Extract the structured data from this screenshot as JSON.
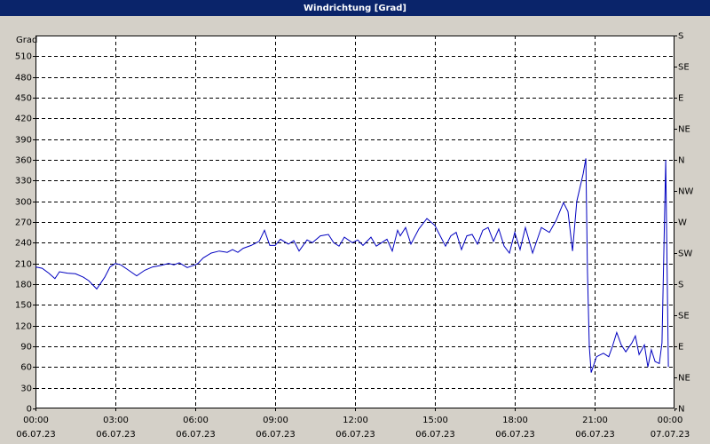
{
  "chart_data": {
    "type": "line",
    "title": "Windrichtung [Grad]",
    "y_label": "Grad",
    "x": [
      0,
      0.25,
      0.5,
      0.73,
      0.9,
      1.2,
      1.5,
      1.8,
      2.0,
      2.3,
      2.6,
      2.8,
      3.0,
      3.2,
      3.5,
      3.8,
      4.1,
      4.4,
      4.7,
      5.0,
      5.2,
      5.4,
      5.7,
      6.0,
      6.1,
      6.3,
      6.6,
      6.9,
      7.2,
      7.4,
      7.6,
      7.8,
      8.1,
      8.3,
      8.4,
      8.6,
      8.8,
      9.0,
      9.2,
      9.5,
      9.7,
      9.9,
      10.2,
      10.4,
      10.7,
      11.0,
      11.2,
      11.4,
      11.6,
      11.9,
      12.1,
      12.3,
      12.6,
      12.8,
      13.0,
      13.2,
      13.4,
      13.6,
      13.7,
      13.9,
      14.1,
      14.4,
      14.7,
      15.0,
      15.2,
      15.4,
      15.6,
      15.8,
      16.0,
      16.2,
      16.4,
      16.6,
      16.8,
      17.0,
      17.2,
      17.4,
      17.6,
      17.8,
      18.0,
      18.2,
      18.4,
      18.67,
      19.0,
      19.3,
      19.55,
      19.83,
      20.0,
      20.17,
      20.33,
      20.57,
      20.67,
      20.73,
      20.8,
      20.87,
      21.07,
      21.33,
      21.53,
      21.67,
      21.83,
      22.0,
      22.17,
      22.4,
      22.53,
      22.67,
      22.87,
      23.0,
      23.13,
      23.27,
      23.43,
      23.53,
      23.67,
      23.77
    ],
    "series": [
      {
        "name": "Windrichtung",
        "color": "#0000c0",
        "values": [
          205,
          203,
          196,
          188,
          198,
          196,
          195,
          190,
          185,
          173,
          190,
          205,
          210,
          208,
          200,
          192,
          200,
          205,
          207,
          210,
          208,
          211,
          204,
          208,
          210,
          218,
          225,
          228,
          226,
          230,
          226,
          232,
          236,
          240,
          242,
          258,
          236,
          236,
          245,
          238,
          243,
          228,
          244,
          240,
          250,
          252,
          240,
          235,
          248,
          240,
          244,
          236,
          248,
          235,
          240,
          245,
          228,
          258,
          250,
          262,
          238,
          260,
          275,
          265,
          250,
          235,
          250,
          255,
          230,
          250,
          252,
          238,
          258,
          262,
          242,
          260,
          235,
          225,
          255,
          230,
          262,
          225,
          262,
          255,
          272,
          298,
          285,
          228,
          300,
          340,
          362,
          200,
          90,
          52,
          75,
          80,
          75,
          90,
          110,
          92,
          82,
          95,
          105,
          78,
          92,
          60,
          85,
          68,
          65,
          95,
          360,
          60
        ]
      }
    ],
    "xlim": [
      0,
      24
    ],
    "xticks": [
      {
        "value": 0,
        "label": "00:00",
        "sublabel": "06.07.23"
      },
      {
        "value": 3,
        "label": "03:00",
        "sublabel": "06.07.23"
      },
      {
        "value": 6,
        "label": "06:00",
        "sublabel": "06.07.23"
      },
      {
        "value": 9,
        "label": "09:00",
        "sublabel": "06.07.23"
      },
      {
        "value": 12,
        "label": "12:00",
        "sublabel": "06.07.23"
      },
      {
        "value": 15,
        "label": "15:00",
        "sublabel": "06.07.23"
      },
      {
        "value": 18,
        "label": "18:00",
        "sublabel": "06.07.23"
      },
      {
        "value": 21,
        "label": "21:00",
        "sublabel": "06.07.23"
      },
      {
        "value": 24,
        "label": "00:00",
        "sublabel": "07.07.23"
      }
    ],
    "ylim": [
      0,
      540
    ],
    "yticks": [
      0,
      30,
      60,
      90,
      120,
      150,
      180,
      210,
      240,
      270,
      300,
      330,
      360,
      390,
      420,
      450,
      480,
      510
    ],
    "y2lim": [
      0,
      540
    ],
    "y2ticks": [
      {
        "value": 0,
        "label": "N"
      },
      {
        "value": 45,
        "label": "NE"
      },
      {
        "value": 90,
        "label": "E"
      },
      {
        "value": 135,
        "label": "SE"
      },
      {
        "value": 180,
        "label": "S"
      },
      {
        "value": 225,
        "label": "SW"
      },
      {
        "value": 270,
        "label": "W"
      },
      {
        "value": 315,
        "label": "NW"
      },
      {
        "value": 360,
        "label": "N"
      },
      {
        "value": 405,
        "label": "NE"
      },
      {
        "value": 450,
        "label": "E"
      },
      {
        "value": 495,
        "label": "SE"
      },
      {
        "value": 540,
        "label": "S"
      }
    ],
    "grid": true
  }
}
